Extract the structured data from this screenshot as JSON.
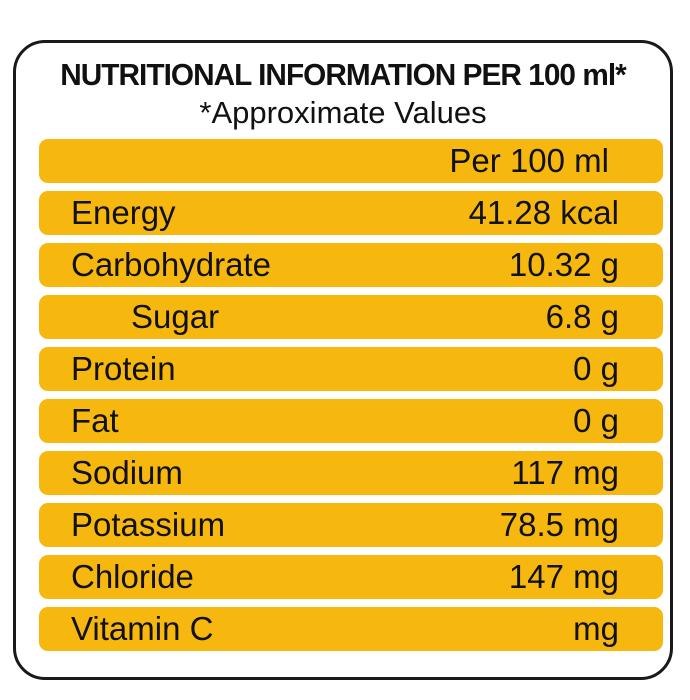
{
  "title": "NUTRITIONAL INFORMATION PER 100 ml*",
  "subtitle": "*Approximate Values",
  "column_header": "Per 100 ml",
  "rows": [
    {
      "label": "Energy",
      "value": "41.28 kcal"
    },
    {
      "label": "Carbohydrate",
      "value": "10.32 g"
    },
    {
      "label": "Sugar",
      "value": "6.8 g"
    },
    {
      "label": "Protein",
      "value": "0 g"
    },
    {
      "label": "Fat",
      "value": "0 g"
    },
    {
      "label": "Sodium",
      "value": "117 mg"
    },
    {
      "label": "Potassium",
      "value": "78.5 mg"
    },
    {
      "label": "Chloride",
      "value": "147 mg"
    },
    {
      "label": "Vitamin C",
      "value": "mg"
    }
  ],
  "colors": {
    "row_fill": "#f6b70f",
    "border": "#1a1a1a",
    "text": "#111111"
  }
}
